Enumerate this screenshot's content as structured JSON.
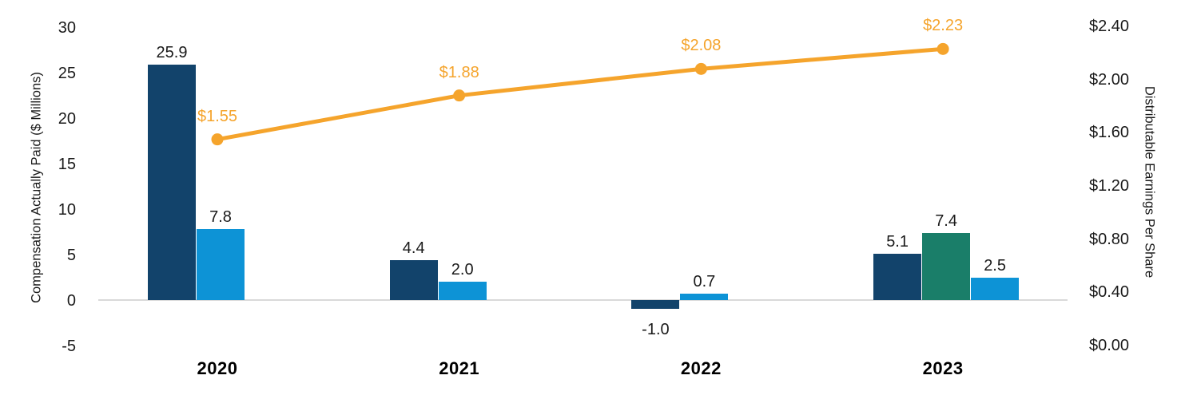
{
  "colors": {
    "navy": "#12436B",
    "teal": "#1A7E69",
    "blue": "#0D93D6",
    "orange": "#F5A42C",
    "gridline": "#D9D9D9",
    "text": "#1A1A1A",
    "category_text": "#000000"
  },
  "chart_data": {
    "type": "bar+line",
    "categories": [
      "2020",
      "2021",
      "2022",
      "2023"
    ],
    "bar_series": [
      {
        "id": "navy-bars",
        "color_key": "navy",
        "values": [
          25.9,
          4.4,
          -1.0,
          5.1
        ],
        "labels": [
          "25.9",
          "4.4",
          "-1.0",
          "5.1"
        ],
        "slots": [
          0,
          0,
          0,
          0
        ]
      },
      {
        "id": "teal-bars",
        "color_key": "teal",
        "values": [
          null,
          null,
          null,
          7.4
        ],
        "labels": [
          null,
          null,
          null,
          "7.4"
        ],
        "slots": [
          null,
          null,
          null,
          1
        ]
      },
      {
        "id": "blue-bars",
        "color_key": "blue",
        "values": [
          7.8,
          2.0,
          0.7,
          2.5
        ],
        "labels": [
          "7.8",
          "2.0",
          "0.7",
          "2.5"
        ],
        "slots": [
          1,
          1,
          1,
          2
        ]
      }
    ],
    "line_series": {
      "id": "distributable-eps-line",
      "color_key": "orange",
      "values": [
        1.55,
        1.88,
        2.08,
        2.23
      ],
      "labels": [
        "$1.55",
        "$1.88",
        "$2.08",
        "$2.23"
      ]
    },
    "left_axis": {
      "title": "Compensation Actually Paid ($ Millions)",
      "range": [
        -5,
        30
      ],
      "ticks": [
        {
          "v": 30,
          "label": "30"
        },
        {
          "v": 25,
          "label": "25"
        },
        {
          "v": 20,
          "label": "20"
        },
        {
          "v": 15,
          "label": "15"
        },
        {
          "v": 10,
          "label": "10"
        },
        {
          "v": 5,
          "label": "5"
        },
        {
          "v": 0,
          "label": "0"
        },
        {
          "v": -5,
          "label": "-5"
        }
      ]
    },
    "right_axis": {
      "title": "Distributable Earnings Per Share",
      "range": [
        0.0,
        2.4
      ],
      "ticks": [
        {
          "v": 2.4,
          "label": "$2.40"
        },
        {
          "v": 2.0,
          "label": "$2.00"
        },
        {
          "v": 1.6,
          "label": "$1.60"
        },
        {
          "v": 1.2,
          "label": "$1.20"
        },
        {
          "v": 0.8,
          "label": "$0.80"
        },
        {
          "v": 0.4,
          "label": "$0.40"
        },
        {
          "v": 0.0,
          "label": "$0.00"
        }
      ]
    },
    "grid": "zero-line-only",
    "legend": "none"
  }
}
